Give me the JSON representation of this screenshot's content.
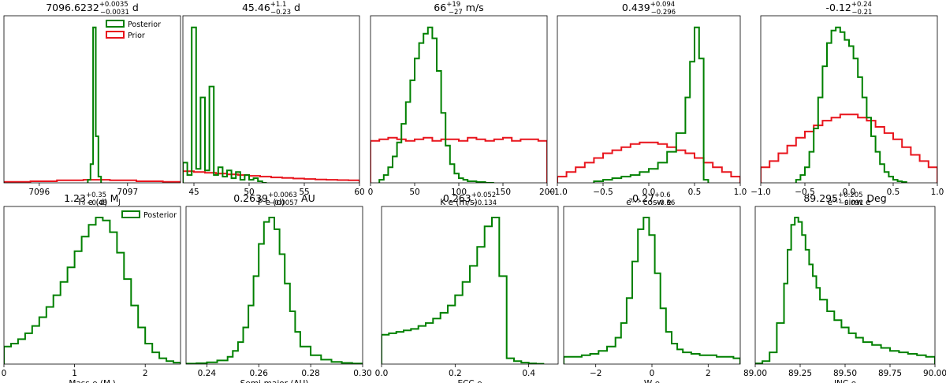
{
  "colors": {
    "posterior": "#008000",
    "prior": "#e8141c",
    "frame": "#000000"
  },
  "legend": {
    "posterior_label": "Posterior",
    "prior_label": "Prior"
  },
  "chart_data": [
    {
      "type": "histogram",
      "title": {
        "main": "7096.6232",
        "sup": "+0.0035",
        "sub": "−0.0031",
        "unit": " d"
      },
      "xlabel": "T₀ e (d)",
      "xlim": [
        7095.6,
        7097.6
      ],
      "xticks": [
        7096,
        7097
      ],
      "xtick_labels": [
        "7096",
        "7097"
      ],
      "legend": true,
      "series": [
        {
          "name": "Posterior",
          "color_key": "posterior",
          "bins": [
            7096.55,
            7096.58,
            7096.61,
            7096.64,
            7096.67,
            7096.7
          ],
          "values": [
            0.02,
            0.12,
            1.0,
            0.3,
            0.04
          ]
        },
        {
          "name": "Prior",
          "color_key": "prior",
          "bins": [
            7095.6,
            7095.9,
            7096.2,
            7096.5,
            7096.8,
            7097.1,
            7097.4,
            7097.6
          ],
          "values": [
            0.006,
            0.01,
            0.016,
            0.02,
            0.016,
            0.01,
            0.006
          ]
        }
      ]
    },
    {
      "type": "histogram",
      "title": {
        "main": "45.46",
        "sup": "+1.1",
        "sub": "−0.23",
        "unit": " d"
      },
      "xlabel": "P e (d)",
      "xlim": [
        44,
        60
      ],
      "xticks": [
        45,
        50,
        55,
        60
      ],
      "xtick_labels": [
        "45",
        "50",
        "55",
        "60"
      ],
      "series": [
        {
          "name": "Posterior",
          "color_key": "posterior",
          "bins": [
            44,
            44.4,
            44.8,
            45.2,
            45.6,
            46.0,
            46.4,
            46.8,
            47.2,
            47.6,
            48.0,
            48.4,
            48.8,
            49.2,
            49.6,
            50.0,
            50.4,
            50.8,
            51.2,
            51.6
          ],
          "values": [
            0.13,
            0.05,
            1.0,
            0.09,
            0.55,
            0.08,
            0.62,
            0.05,
            0.1,
            0.04,
            0.08,
            0.03,
            0.07,
            0.02,
            0.05,
            0.02,
            0.03,
            0.01,
            0.0
          ]
        },
        {
          "name": "Prior",
          "color_key": "prior",
          "bins": [
            44,
            45,
            46,
            47,
            48,
            49,
            50,
            51,
            52,
            53,
            54,
            55,
            56,
            57,
            58,
            59,
            60
          ],
          "values": [
            0.075,
            0.07,
            0.065,
            0.06,
            0.055,
            0.05,
            0.045,
            0.04,
            0.035,
            0.032,
            0.028,
            0.025,
            0.022,
            0.02,
            0.018,
            0.016
          ]
        }
      ]
    },
    {
      "type": "histogram",
      "title": {
        "main": "66",
        "sup": "+19",
        "sub": "−27",
        "unit": " m/s"
      },
      "xlabel": "K e (m/s)",
      "xlim": [
        0,
        200
      ],
      "xticks": [
        0,
        50,
        100,
        150
      ],
      "xtick_labels": [
        "0",
        "50",
        "100",
        "150"
      ],
      "extra_edge_label": "200",
      "series": [
        {
          "name": "Posterior",
          "color_key": "posterior",
          "bins": [
            10,
            15,
            20,
            25,
            30,
            35,
            40,
            45,
            50,
            55,
            60,
            65,
            70,
            75,
            80,
            85,
            90,
            95,
            100,
            105,
            110,
            115,
            120,
            125,
            130,
            135,
            140
          ],
          "values": [
            0.02,
            0.05,
            0.1,
            0.17,
            0.26,
            0.38,
            0.52,
            0.66,
            0.8,
            0.9,
            0.96,
            1.0,
            0.93,
            0.72,
            0.45,
            0.24,
            0.12,
            0.06,
            0.03,
            0.02,
            0.01,
            0.01,
            0.005,
            0.005,
            0.0,
            0.0
          ]
        },
        {
          "name": "Prior",
          "color_key": "prior",
          "bins": [
            0,
            10,
            20,
            30,
            40,
            50,
            60,
            70,
            80,
            90,
            100,
            110,
            120,
            130,
            140,
            150,
            160,
            170,
            180,
            190,
            200
          ],
          "values": [
            0.27,
            0.28,
            0.29,
            0.28,
            0.27,
            0.28,
            0.29,
            0.27,
            0.28,
            0.28,
            0.27,
            0.29,
            0.28,
            0.27,
            0.28,
            0.29,
            0.27,
            0.28,
            0.28,
            0.27
          ]
        }
      ]
    },
    {
      "type": "histogram",
      "title": {
        "main": "0.439",
        "sup": "+0.094",
        "sub": "−0.296",
        "unit": ""
      },
      "xlabel": "e⁰·⁵ cosw e",
      "xlim": [
        -1.0,
        1.0
      ],
      "xticks": [
        -1.0,
        -0.5,
        0.0,
        0.5,
        1.0
      ],
      "xtick_labels": [
        "−1.0",
        "−0.5",
        "0.0",
        "0.5",
        "1.0"
      ],
      "series": [
        {
          "name": "Posterior",
          "color_key": "posterior",
          "bins": [
            -0.6,
            -0.5,
            -0.4,
            -0.3,
            -0.2,
            -0.1,
            0.0,
            0.1,
            0.2,
            0.3,
            0.4,
            0.45,
            0.5,
            0.55,
            0.6,
            0.65
          ],
          "values": [
            0.01,
            0.02,
            0.03,
            0.04,
            0.05,
            0.07,
            0.09,
            0.13,
            0.2,
            0.32,
            0.55,
            0.78,
            1.0,
            0.8,
            0.02
          ]
        },
        {
          "name": "Prior",
          "color_key": "prior",
          "bins": [
            -1.0,
            -0.9,
            -0.8,
            -0.7,
            -0.6,
            -0.5,
            -0.4,
            -0.3,
            -0.2,
            -0.1,
            0.0,
            0.1,
            0.2,
            0.3,
            0.4,
            0.5,
            0.6,
            0.7,
            0.8,
            0.9,
            1.0
          ],
          "values": [
            0.04,
            0.07,
            0.1,
            0.13,
            0.16,
            0.19,
            0.21,
            0.23,
            0.25,
            0.26,
            0.26,
            0.25,
            0.23,
            0.21,
            0.19,
            0.16,
            0.13,
            0.1,
            0.07,
            0.04
          ]
        }
      ]
    },
    {
      "type": "histogram",
      "title": {
        "main": "-0.12",
        "sup": "+0.24",
        "sub": "−0.21",
        "unit": ""
      },
      "xlabel": "e⁰·⁵ sinw e",
      "xlim": [
        -1.0,
        1.0
      ],
      "xticks": [
        -1.0,
        -0.5,
        0.0,
        0.5,
        1.0
      ],
      "xtick_labels": [
        "−1.0",
        "−0.5",
        "0.0",
        "0.5",
        "1.0"
      ],
      "series": [
        {
          "name": "Posterior",
          "color_key": "posterior",
          "bins": [
            -0.6,
            -0.55,
            -0.5,
            -0.45,
            -0.4,
            -0.35,
            -0.3,
            -0.25,
            -0.2,
            -0.15,
            -0.1,
            -0.05,
            0.0,
            0.05,
            0.1,
            0.15,
            0.2,
            0.25,
            0.3,
            0.35,
            0.4,
            0.45,
            0.5,
            0.55,
            0.6,
            0.65
          ],
          "values": [
            0.02,
            0.05,
            0.1,
            0.2,
            0.35,
            0.55,
            0.75,
            0.9,
            0.98,
            1.0,
            0.97,
            0.92,
            0.88,
            0.8,
            0.68,
            0.55,
            0.42,
            0.3,
            0.2,
            0.12,
            0.07,
            0.04,
            0.02,
            0.01,
            0.005
          ]
        },
        {
          "name": "Prior",
          "color_key": "prior",
          "bins": [
            -1.0,
            -0.9,
            -0.8,
            -0.7,
            -0.6,
            -0.5,
            -0.4,
            -0.3,
            -0.2,
            -0.1,
            0.0,
            0.1,
            0.2,
            0.3,
            0.4,
            0.5,
            0.6,
            0.7,
            0.8,
            0.9,
            1.0
          ],
          "values": [
            0.1,
            0.14,
            0.19,
            0.24,
            0.29,
            0.33,
            0.37,
            0.4,
            0.42,
            0.44,
            0.44,
            0.42,
            0.4,
            0.36,
            0.32,
            0.28,
            0.23,
            0.18,
            0.14,
            0.1
          ]
        }
      ]
    },
    {
      "type": "histogram",
      "title": {
        "main": "1.23",
        "sup": "+0.35",
        "sub": "−0.48",
        "unit": " M",
        "unit_sub": "J"
      },
      "xlabel": "Mass e (M",
      "xlabel_sub": "J",
      "xlabel_close": ")",
      "xlim": [
        0,
        2.5
      ],
      "xticks": [
        0,
        1,
        2
      ],
      "xtick_labels": [
        "0",
        "1",
        "2"
      ],
      "legend": true,
      "legend_posterior_only": true,
      "series": [
        {
          "name": "Posterior",
          "color_key": "posterior",
          "bins": [
            0.0,
            0.1,
            0.2,
            0.3,
            0.4,
            0.5,
            0.6,
            0.7,
            0.8,
            0.9,
            1.0,
            1.1,
            1.2,
            1.3,
            1.4,
            1.5,
            1.6,
            1.7,
            1.8,
            1.9,
            2.0,
            2.1,
            2.2,
            2.3,
            2.4,
            2.5
          ],
          "values": [
            0.12,
            0.14,
            0.17,
            0.21,
            0.26,
            0.32,
            0.39,
            0.47,
            0.56,
            0.66,
            0.77,
            0.87,
            0.95,
            1.0,
            0.98,
            0.9,
            0.76,
            0.58,
            0.4,
            0.25,
            0.14,
            0.08,
            0.04,
            0.02,
            0.01
          ]
        }
      ]
    },
    {
      "type": "histogram",
      "title": {
        "main": "0.2639",
        "sup": "+0.0063",
        "sub": "−0.0057",
        "unit": " AU"
      },
      "xlabel": "Semi-major (AU)",
      "xlim": [
        0.232,
        0.3
      ],
      "xticks": [
        0.24,
        0.26,
        0.28,
        0.3
      ],
      "xtick_labels": [
        "0.24",
        "0.26",
        "0.28",
        "0.30"
      ],
      "series": [
        {
          "name": "Posterior",
          "color_key": "posterior",
          "bins": [
            0.232,
            0.236,
            0.24,
            0.244,
            0.248,
            0.25,
            0.252,
            0.254,
            0.256,
            0.258,
            0.26,
            0.262,
            0.264,
            0.266,
            0.268,
            0.27,
            0.272,
            0.274,
            0.276,
            0.28,
            0.284,
            0.288,
            0.292,
            0.296,
            0.3
          ],
          "values": [
            0.003,
            0.006,
            0.012,
            0.025,
            0.05,
            0.09,
            0.15,
            0.25,
            0.4,
            0.6,
            0.82,
            0.97,
            1.0,
            0.92,
            0.75,
            0.55,
            0.36,
            0.22,
            0.12,
            0.06,
            0.03,
            0.015,
            0.008,
            0.004
          ]
        }
      ]
    },
    {
      "type": "histogram",
      "title": {
        "main": "0.263",
        "sup": "+0.052",
        "sub": "−0.134",
        "unit": ""
      },
      "xlabel": "ECC e",
      "xlim": [
        0.0,
        0.48
      ],
      "xticks": [
        0.0,
        0.2,
        0.4
      ],
      "xtick_labels": [
        "0.0",
        "0.2",
        "0.4"
      ],
      "series": [
        {
          "name": "Posterior",
          "color_key": "posterior",
          "bins": [
            0.0,
            0.02,
            0.04,
            0.06,
            0.08,
            0.1,
            0.12,
            0.14,
            0.16,
            0.18,
            0.2,
            0.22,
            0.24,
            0.26,
            0.28,
            0.3,
            0.32,
            0.34,
            0.36,
            0.38,
            0.4,
            0.42,
            0.44
          ],
          "values": [
            0.2,
            0.21,
            0.22,
            0.23,
            0.24,
            0.26,
            0.28,
            0.31,
            0.35,
            0.4,
            0.47,
            0.56,
            0.67,
            0.8,
            0.94,
            1.0,
            0.6,
            0.04,
            0.02,
            0.01,
            0.005,
            0.002
          ]
        }
      ]
    },
    {
      "type": "histogram",
      "title": {
        "main": "-0.27",
        "sup": "+0.6",
        "sub": "−0.56",
        "unit": ""
      },
      "xlabel": "W e",
      "xlim": [
        -3.1416,
        3.1416
      ],
      "xticks": [
        -2,
        0,
        2
      ],
      "xtick_labels": [
        "−2",
        "0",
        "2"
      ],
      "series": [
        {
          "name": "Posterior",
          "color_key": "posterior",
          "bins": [
            -3.14,
            -2.8,
            -2.5,
            -2.2,
            -1.9,
            -1.6,
            -1.3,
            -1.1,
            -0.9,
            -0.7,
            -0.5,
            -0.3,
            -0.1,
            0.1,
            0.3,
            0.5,
            0.7,
            0.9,
            1.1,
            1.4,
            1.7,
            2.0,
            2.3,
            2.6,
            2.9,
            3.14
          ],
          "values": [
            0.05,
            0.05,
            0.06,
            0.07,
            0.09,
            0.12,
            0.18,
            0.28,
            0.45,
            0.7,
            0.92,
            1.0,
            0.88,
            0.62,
            0.38,
            0.22,
            0.14,
            0.1,
            0.08,
            0.07,
            0.06,
            0.06,
            0.05,
            0.05,
            0.04
          ]
        }
      ]
    },
    {
      "type": "histogram",
      "title": {
        "main": "89.295",
        "sup": "+0.205",
        "sub": "−0.091",
        "unit": " Deg"
      },
      "xlabel": "INC e",
      "xlim": [
        89.0,
        90.0
      ],
      "xticks": [
        89.0,
        89.25,
        89.5,
        89.75,
        90.0
      ],
      "xtick_labels": [
        "89.00",
        "89.25",
        "89.50",
        "89.75",
        "90.00"
      ],
      "series": [
        {
          "name": "Posterior",
          "color_key": "posterior",
          "bins": [
            89.0,
            89.04,
            89.08,
            89.12,
            89.16,
            89.18,
            89.2,
            89.22,
            89.24,
            89.26,
            89.28,
            89.3,
            89.32,
            89.34,
            89.36,
            89.4,
            89.44,
            89.48,
            89.52,
            89.56,
            89.6,
            89.65,
            89.7,
            89.75,
            89.8,
            89.85,
            89.9,
            89.95,
            90.0
          ],
          "values": [
            0.005,
            0.02,
            0.08,
            0.28,
            0.55,
            0.78,
            0.95,
            1.0,
            0.97,
            0.88,
            0.78,
            0.68,
            0.6,
            0.52,
            0.44,
            0.36,
            0.3,
            0.25,
            0.21,
            0.18,
            0.15,
            0.13,
            0.11,
            0.09,
            0.08,
            0.07,
            0.06,
            0.05
          ]
        }
      ]
    }
  ]
}
